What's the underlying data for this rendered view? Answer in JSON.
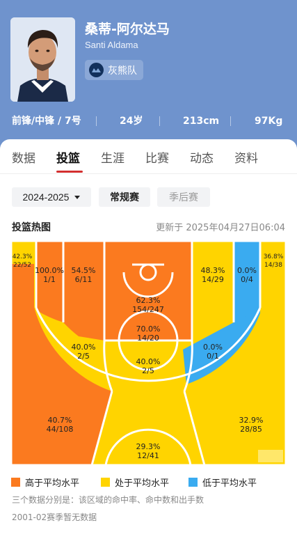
{
  "player": {
    "name_cn": "桑蒂-阿尔达马",
    "name_en": "Santi Aldama",
    "team": "灰熊队",
    "position": "前锋/中锋 / 7号",
    "age": "24岁",
    "height": "213cm",
    "weight": "97Kg"
  },
  "tabs": [
    "数据",
    "投篮",
    "生涯",
    "比赛",
    "动态",
    "资料"
  ],
  "active_tab": "投篮",
  "filters": {
    "season": "2024-2025",
    "regular": "常规赛",
    "playoff": "季后赛"
  },
  "chart": {
    "title": "投篮热图",
    "updated": "更新于 2025年04月27日06:04"
  },
  "colors": {
    "above": "#fb7a1f",
    "average": "#ffd400",
    "below": "#3aabf0",
    "header": "#6f93cd"
  },
  "zones": [
    {
      "id": "left-corner-3",
      "pct": "42.3%",
      "made_att": "22/52",
      "level": "average"
    },
    {
      "id": "left-baseline-mid",
      "pct": "100.0%",
      "made_att": "1/1",
      "level": "above"
    },
    {
      "id": "left-paint-side",
      "pct": "54.5%",
      "made_att": "6/11",
      "level": "above"
    },
    {
      "id": "restricted-area",
      "pct": "62.3%",
      "made_att": "154/247",
      "level": "above"
    },
    {
      "id": "paint",
      "pct": "70.0%",
      "made_att": "14/20",
      "level": "above"
    },
    {
      "id": "right-paint-side",
      "pct": "48.3%",
      "made_att": "14/29",
      "level": "average"
    },
    {
      "id": "right-baseline-mid",
      "pct": "0.0%",
      "made_att": "0/4",
      "level": "below"
    },
    {
      "id": "right-corner-3",
      "pct": "36.8%",
      "made_att": "14/38",
      "level": "average"
    },
    {
      "id": "left-elbow-mid",
      "pct": "40.0%",
      "made_att": "2/5",
      "level": "average"
    },
    {
      "id": "top-key-mid",
      "pct": "40.0%",
      "made_att": "2/5",
      "level": "average"
    },
    {
      "id": "right-elbow-mid",
      "pct": "0.0%",
      "made_att": "0/1",
      "level": "below"
    },
    {
      "id": "left-wing-3",
      "pct": "40.7%",
      "made_att": "44/108",
      "level": "above"
    },
    {
      "id": "top-3",
      "pct": "29.3%",
      "made_att": "12/41",
      "level": "average"
    },
    {
      "id": "right-wing-3",
      "pct": "32.9%",
      "made_att": "28/85",
      "level": "average"
    }
  ],
  "legend": {
    "above": "高于平均水平",
    "average": "处于平均水平",
    "below": "低于平均水平"
  },
  "notes": {
    "explain": "三个数据分别是：该区域的命中率、命中数和出手数",
    "no_data": "2001-02赛季暂无数据"
  }
}
